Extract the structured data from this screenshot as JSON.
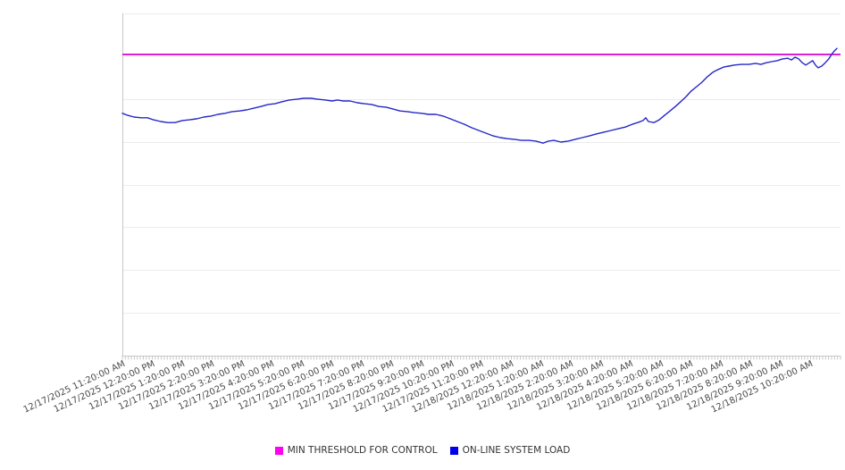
{
  "chart": {
    "background": "#ffffff",
    "grid_color": "#ececec",
    "axis_color": "#c8c8c8",
    "tick_label_color": "#4a4a4a",
    "legend_text_color": "#333333"
  },
  "chart_data": {
    "type": "line",
    "title": "",
    "legend_position": "bottom",
    "grid": true,
    "x_tick_labels": [
      "12/17/2025 11:20:00 AM",
      "12/17/2025 12:20:00 PM",
      "12/17/2025 1:20:00 PM",
      "12/17/2025 2:20:00 PM",
      "12/17/2025 3:20:00 PM",
      "12/17/2025 4:20:00 PM",
      "12/17/2025 5:20:00 PM",
      "12/17/2025 6:20:00 PM",
      "12/17/2025 7:20:00 PM",
      "12/17/2025 8:20:00 PM",
      "12/17/2025 9:20:00 PM",
      "12/17/2025 10:20:00 PM",
      "12/17/2025 11:20:00 PM",
      "12/18/2025 12:20:00 AM",
      "12/18/2025 1:20:00 AM",
      "12/18/2025 2:20:00 AM",
      "12/18/2025 3:20:00 AM",
      "12/18/2025 4:20:00 AM",
      "12/18/2025 5:20:00 AM",
      "12/18/2025 6:20:00 AM",
      "12/18/2025 7:20:00 AM",
      "12/18/2025 8:20:00 AM",
      "12/18/2025 9:20:00 AM",
      "12/18/2025 10:20:00 AM"
    ],
    "x_minor_ticks_per_hour": 10,
    "y_axis": {
      "labels_visible": false,
      "range": [
        0,
        100
      ],
      "unit": "relative"
    },
    "series": [
      {
        "name": "MIN THRESHOLD FOR CONTROL",
        "kind": "horizontal-threshold",
        "legend_color": "#ff00f0",
        "line_color": "#d911d0",
        "value": 88.0
      },
      {
        "name": "ON-LINE SYSTEM LOAD",
        "kind": "line",
        "legend_color": "#0000ee",
        "line_color": "#2626c9",
        "x_unit": "hours since 12/17/2025 11:20:00 AM",
        "points": [
          [
            0.0,
            70.8
          ],
          [
            0.18,
            70.2
          ],
          [
            0.39,
            69.7
          ],
          [
            0.63,
            69.5
          ],
          [
            0.84,
            69.5
          ],
          [
            1.04,
            68.9
          ],
          [
            1.28,
            68.4
          ],
          [
            1.52,
            68.1
          ],
          [
            1.76,
            68.1
          ],
          [
            2.0,
            68.7
          ],
          [
            2.24,
            68.9
          ],
          [
            2.48,
            69.2
          ],
          [
            2.72,
            69.7
          ],
          [
            2.96,
            70.0
          ],
          [
            3.19,
            70.5
          ],
          [
            3.43,
            70.8
          ],
          [
            3.67,
            71.3
          ],
          [
            3.91,
            71.5
          ],
          [
            4.15,
            71.8
          ],
          [
            4.39,
            72.3
          ],
          [
            4.63,
            72.8
          ],
          [
            4.87,
            73.4
          ],
          [
            5.1,
            73.6
          ],
          [
            5.34,
            74.2
          ],
          [
            5.58,
            74.7
          ],
          [
            5.82,
            74.9
          ],
          [
            6.06,
            75.2
          ],
          [
            6.3,
            75.2
          ],
          [
            6.54,
            74.9
          ],
          [
            6.78,
            74.7
          ],
          [
            7.01,
            74.4
          ],
          [
            7.19,
            74.7
          ],
          [
            7.37,
            74.4
          ],
          [
            7.61,
            74.4
          ],
          [
            7.85,
            73.9
          ],
          [
            8.09,
            73.6
          ],
          [
            8.33,
            73.4
          ],
          [
            8.57,
            72.8
          ],
          [
            8.81,
            72.6
          ],
          [
            9.04,
            72.1
          ],
          [
            9.28,
            71.5
          ],
          [
            9.52,
            71.3
          ],
          [
            9.76,
            71.0
          ],
          [
            10.0,
            70.8
          ],
          [
            10.24,
            70.5
          ],
          [
            10.48,
            70.5
          ],
          [
            10.72,
            70.0
          ],
          [
            10.96,
            69.2
          ],
          [
            11.19,
            68.4
          ],
          [
            11.43,
            67.6
          ],
          [
            11.67,
            66.6
          ],
          [
            11.91,
            65.8
          ],
          [
            12.15,
            65.0
          ],
          [
            12.39,
            64.2
          ],
          [
            12.63,
            63.7
          ],
          [
            12.87,
            63.4
          ],
          [
            13.1,
            63.2
          ],
          [
            13.34,
            62.9
          ],
          [
            13.58,
            62.9
          ],
          [
            13.82,
            62.7
          ],
          [
            14.06,
            62.1
          ],
          [
            14.24,
            62.7
          ],
          [
            14.42,
            62.9
          ],
          [
            14.66,
            62.4
          ],
          [
            14.9,
            62.7
          ],
          [
            15.13,
            63.2
          ],
          [
            15.37,
            63.7
          ],
          [
            15.61,
            64.2
          ],
          [
            15.85,
            64.8
          ],
          [
            16.09,
            65.3
          ],
          [
            16.33,
            65.8
          ],
          [
            16.57,
            66.3
          ],
          [
            16.81,
            66.8
          ],
          [
            17.04,
            67.6
          ],
          [
            17.22,
            68.1
          ],
          [
            17.4,
            68.7
          ],
          [
            17.49,
            69.5
          ],
          [
            17.58,
            68.4
          ],
          [
            17.76,
            68.1
          ],
          [
            17.94,
            68.9
          ],
          [
            18.12,
            70.2
          ],
          [
            18.3,
            71.5
          ],
          [
            18.48,
            72.8
          ],
          [
            18.66,
            74.2
          ],
          [
            18.84,
            75.7
          ],
          [
            19.01,
            77.3
          ],
          [
            19.19,
            78.6
          ],
          [
            19.37,
            79.9
          ],
          [
            19.55,
            81.5
          ],
          [
            19.73,
            82.8
          ],
          [
            19.91,
            83.6
          ],
          [
            20.09,
            84.3
          ],
          [
            20.27,
            84.6
          ],
          [
            20.45,
            84.9
          ],
          [
            20.69,
            85.1
          ],
          [
            20.93,
            85.1
          ],
          [
            21.16,
            85.4
          ],
          [
            21.34,
            85.1
          ],
          [
            21.52,
            85.6
          ],
          [
            21.7,
            85.9
          ],
          [
            21.88,
            86.2
          ],
          [
            22.06,
            86.7
          ],
          [
            22.24,
            86.9
          ],
          [
            22.36,
            86.4
          ],
          [
            22.48,
            87.2
          ],
          [
            22.6,
            86.7
          ],
          [
            22.72,
            85.6
          ],
          [
            22.84,
            84.9
          ],
          [
            22.96,
            85.6
          ],
          [
            23.07,
            86.2
          ],
          [
            23.16,
            84.9
          ],
          [
            23.25,
            84.1
          ],
          [
            23.37,
            84.6
          ],
          [
            23.49,
            85.6
          ],
          [
            23.61,
            86.7
          ],
          [
            23.7,
            88.0
          ],
          [
            23.79,
            89.0
          ],
          [
            23.88,
            89.8
          ]
        ]
      }
    ]
  }
}
